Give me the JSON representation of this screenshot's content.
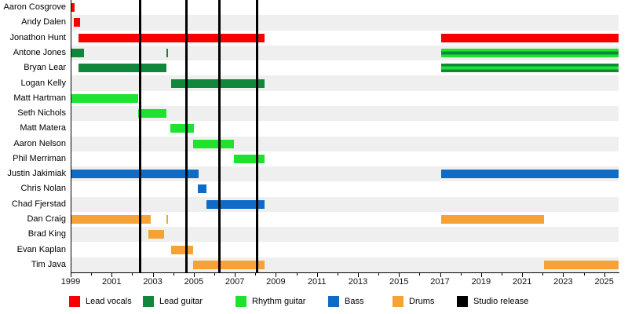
{
  "chart_data": {
    "type": "bar",
    "description": "Band member timeline (Gantt-style) with studio release markers",
    "axis": {
      "start_year": 1999,
      "end_year": 2025.7,
      "tick_years": [
        1999,
        2000,
        2001,
        2002,
        2003,
        2004,
        2005,
        2006,
        2007,
        2008,
        2009,
        2010,
        2011,
        2012,
        2013,
        2014,
        2015,
        2016,
        2017,
        2018,
        2019,
        2020,
        2021,
        2022,
        2023,
        2024,
        2025
      ],
      "label_years": [
        1999,
        2001,
        2003,
        2005,
        2007,
        2009,
        2011,
        2013,
        2015,
        2017,
        2019,
        2021,
        2023,
        2025
      ]
    },
    "studio_release_years": [
      2002.4,
      2004.65,
      2006.25,
      2008.1
    ],
    "members": [
      {
        "name": "Aaron Cosgrove",
        "bars": [
          {
            "start": 1999.0,
            "end": 1999.2,
            "roles": [
              "lead_vocals"
            ]
          }
        ]
      },
      {
        "name": "Andy Dalen",
        "bars": [
          {
            "start": 1999.15,
            "end": 1999.45,
            "roles": [
              "lead_vocals"
            ]
          }
        ]
      },
      {
        "name": "Jonathon Hunt",
        "bars": [
          {
            "start": 1999.4,
            "end": 2008.45,
            "roles": [
              "lead_vocals"
            ]
          },
          {
            "start": 2017.05,
            "end": 2025.7,
            "roles": [
              "lead_vocals"
            ]
          }
        ]
      },
      {
        "name": "Antone Jones",
        "bars": [
          {
            "start": 1999.0,
            "end": 1999.65,
            "roles": [
              "lead_guitar"
            ]
          },
          {
            "start": 2003.65,
            "end": 2003.75,
            "roles": [
              "lead_guitar"
            ]
          },
          {
            "start": 2017.05,
            "end": 2025.7,
            "roles": [
              "rhythm_guitar",
              "lead_guitar"
            ]
          }
        ]
      },
      {
        "name": "Bryan Lear",
        "bars": [
          {
            "start": 1999.4,
            "end": 2003.65,
            "roles": [
              "lead_guitar"
            ]
          },
          {
            "start": 2017.05,
            "end": 2025.7,
            "roles": [
              "lead_guitar",
              "rhythm_guitar"
            ]
          }
        ]
      },
      {
        "name": "Logan Kelly",
        "bars": [
          {
            "start": 2003.9,
            "end": 2008.45,
            "roles": [
              "lead_guitar"
            ]
          }
        ]
      },
      {
        "name": "Matt Hartman",
        "bars": [
          {
            "start": 1999.0,
            "end": 2002.3,
            "roles": [
              "rhythm_guitar"
            ]
          }
        ]
      },
      {
        "name": "Seth Nichols",
        "bars": [
          {
            "start": 2002.3,
            "end": 2003.65,
            "roles": [
              "rhythm_guitar"
            ]
          }
        ]
      },
      {
        "name": "Matt Matera",
        "bars": [
          {
            "start": 2003.85,
            "end": 2005.0,
            "roles": [
              "rhythm_guitar"
            ]
          }
        ]
      },
      {
        "name": "Aaron Nelson",
        "bars": [
          {
            "start": 2004.95,
            "end": 2006.95,
            "roles": [
              "rhythm_guitar"
            ]
          }
        ]
      },
      {
        "name": "Phil Merriman",
        "bars": [
          {
            "start": 2006.95,
            "end": 2008.45,
            "roles": [
              "rhythm_guitar"
            ]
          }
        ]
      },
      {
        "name": "Justin Jakimiak",
        "bars": [
          {
            "start": 1999.0,
            "end": 2005.25,
            "roles": [
              "bass"
            ]
          },
          {
            "start": 2017.05,
            "end": 2025.7,
            "roles": [
              "bass"
            ]
          }
        ]
      },
      {
        "name": "Chris Nolan",
        "bars": [
          {
            "start": 2005.2,
            "end": 2005.6,
            "roles": [
              "bass"
            ]
          }
        ]
      },
      {
        "name": "Chad Fjerstad",
        "bars": [
          {
            "start": 2005.6,
            "end": 2008.45,
            "roles": [
              "bass"
            ]
          }
        ]
      },
      {
        "name": "Dan Craig",
        "bars": [
          {
            "start": 1999.0,
            "end": 2002.9,
            "roles": [
              "drums"
            ]
          },
          {
            "start": 2003.65,
            "end": 2003.75,
            "roles": [
              "drums"
            ]
          },
          {
            "start": 2017.05,
            "end": 2022.05,
            "roles": [
              "drums"
            ]
          }
        ]
      },
      {
        "name": "Brad King",
        "bars": [
          {
            "start": 2002.8,
            "end": 2003.55,
            "roles": [
              "drums"
            ]
          }
        ]
      },
      {
        "name": "Evan Kaplan",
        "bars": [
          {
            "start": 2003.9,
            "end": 2004.95,
            "roles": [
              "drums"
            ]
          }
        ]
      },
      {
        "name": "Tim Java",
        "bars": [
          {
            "start": 2004.95,
            "end": 2008.45,
            "roles": [
              "drums"
            ]
          },
          {
            "start": 2022.05,
            "end": 2025.7,
            "roles": [
              "drums"
            ]
          }
        ]
      }
    ],
    "legend": [
      {
        "label": "Lead vocals",
        "role": "lead_vocals"
      },
      {
        "label": "Lead guitar",
        "role": "lead_guitar"
      },
      {
        "label": "Rhythm guitar",
        "role": "rhythm_guitar"
      },
      {
        "label": "Bass",
        "role": "bass"
      },
      {
        "label": "Drums",
        "role": "drums"
      },
      {
        "label": "Studio release",
        "role": "studio_release"
      }
    ]
  },
  "colors": {
    "lead_vocals": "#F90000",
    "lead_guitar": "#11873B",
    "rhythm_guitar": "#1FE22F",
    "bass": "#0E6BC6",
    "drums": "#F7A237",
    "studio_release": "#000000",
    "row_stripe": "#EFEFEF"
  }
}
